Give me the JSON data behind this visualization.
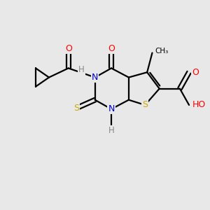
{
  "bg_color": "#e8e8e8",
  "bond_color": "#000000",
  "bond_width": 1.6,
  "atom_colors": {
    "N": "#0000cc",
    "O": "#ff0000",
    "S": "#ccaa00",
    "C": "#000000",
    "H": "#888888"
  },
  "font_size": 9.0,
  "figsize": [
    3.0,
    3.0
  ],
  "dpi": 100
}
